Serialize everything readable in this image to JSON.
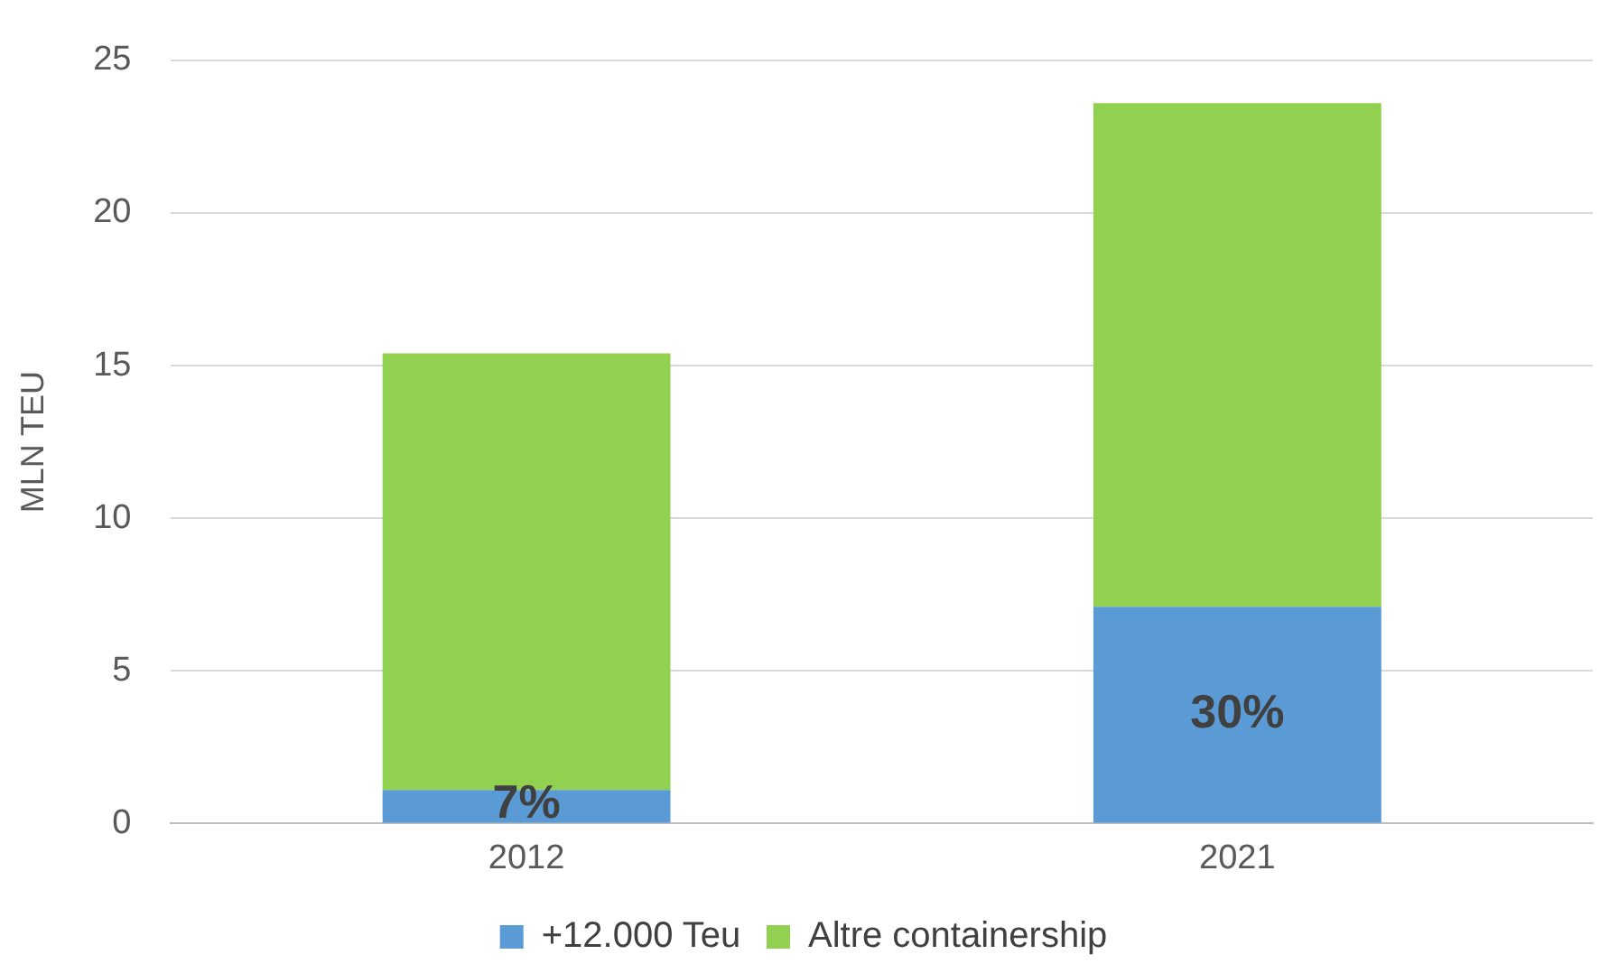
{
  "chart_data": {
    "type": "bar",
    "ylabel": "MLN TEU",
    "categories": [
      "2012",
      "2021"
    ],
    "stacked": true,
    "series": [
      {
        "name": "+12.000 Teu",
        "color": "#5b9bd5",
        "values": [
          1.1,
          7.1
        ]
      },
      {
        "name": "Altre containership",
        "color": "#92d050",
        "values": [
          14.3,
          16.5
        ]
      }
    ],
    "ylim": [
      0,
      25
    ],
    "yticks": [
      0,
      5,
      10,
      15,
      20,
      25
    ],
    "grid": "y",
    "legend": "bottom",
    "annotations": [
      "7%",
      "30%"
    ]
  }
}
